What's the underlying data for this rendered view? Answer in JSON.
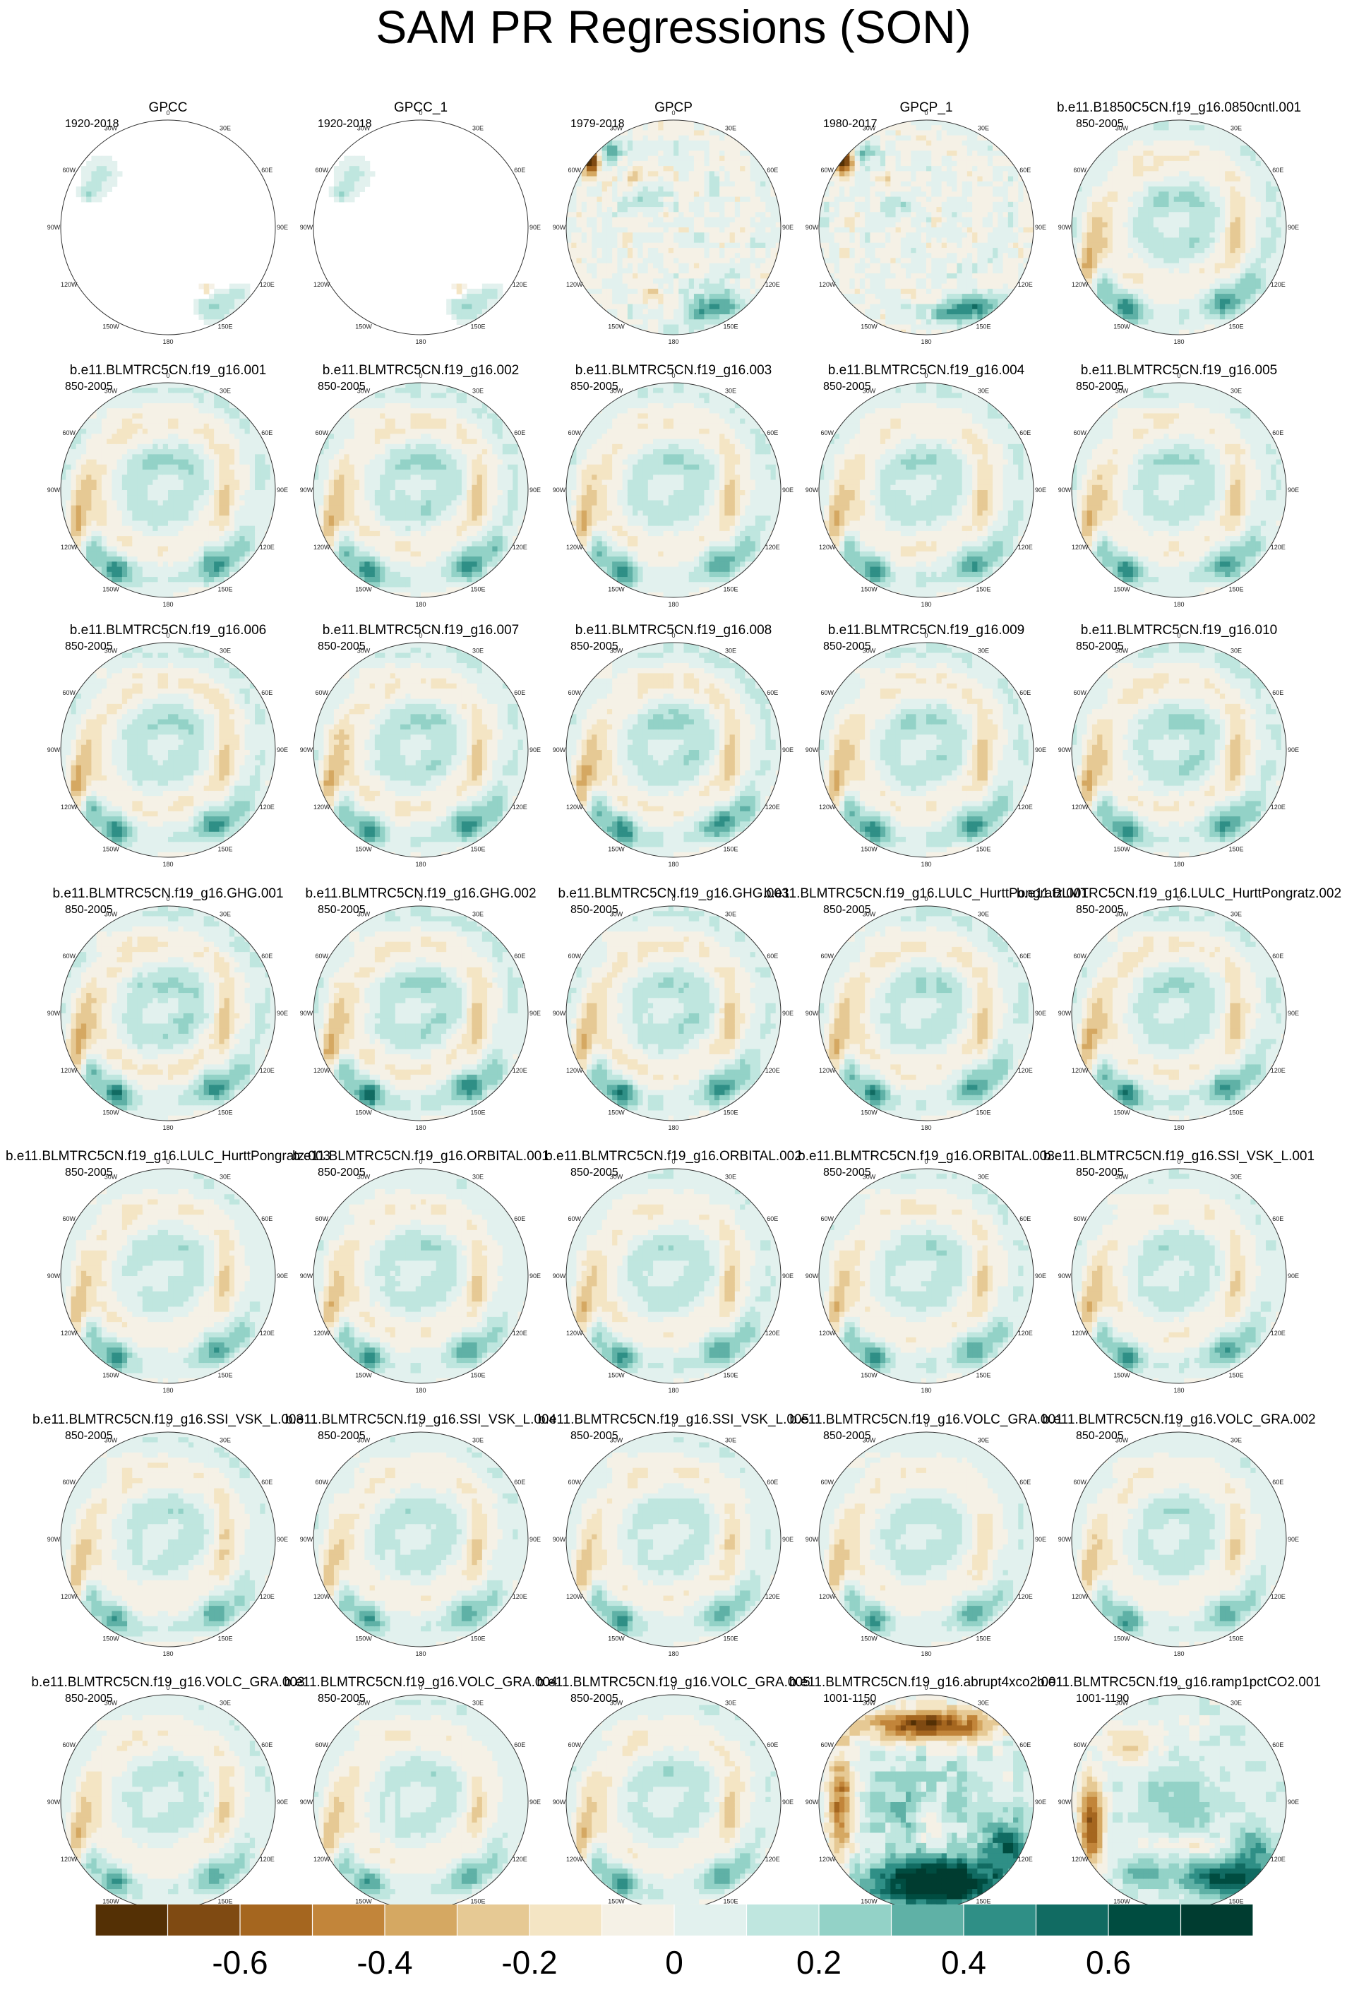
{
  "figure_title": "SAM PR Regressions (SON)",
  "chart_data": {
    "type": "heatmap",
    "title": "SAM PR Regressions (SON)",
    "projection": "south-polar-stereographic",
    "longitude_labels": [
      "0",
      "30E",
      "60E",
      "90E",
      "120E",
      "150E",
      "180",
      "150W",
      "120W",
      "90W",
      "60W",
      "30W"
    ],
    "colorbar": {
      "levels": [
        -0.7,
        -0.6,
        -0.5,
        -0.4,
        -0.3,
        -0.2,
        -0.1,
        0,
        0.1,
        0.2,
        0.3,
        0.4,
        0.5,
        0.6,
        0.7
      ],
      "tick_labels": [
        "-0.6",
        "-0.4",
        "-0.2",
        "0",
        "0.2",
        "0.4",
        "0.6"
      ],
      "tick_values": [
        -0.6,
        -0.4,
        -0.2,
        0,
        0.2,
        0.4,
        0.6
      ],
      "colors": [
        "#543005",
        "#7f4a12",
        "#a5661f",
        "#c2853a",
        "#d5a862",
        "#e6c994",
        "#f4e5c4",
        "#f5f1e6",
        "#e2f1ee",
        "#bfe6df",
        "#93d2c7",
        "#5fb1a6",
        "#2f8f86",
        "#116b62",
        "#004c40",
        "#003c30"
      ]
    },
    "panels": [
      {
        "title": "GPCC",
        "years": "1920-2018",
        "pattern": "obs_sparse",
        "amp": 1.0
      },
      {
        "title": "GPCC_1",
        "years": "1920-2018",
        "pattern": "obs_sparse",
        "amp": 1.0
      },
      {
        "title": "GPCP",
        "years": "1979-2018",
        "pattern": "obs",
        "amp": 1.0
      },
      {
        "title": "GPCP_1",
        "years": "1980-2017",
        "pattern": "obs",
        "amp": 1.0
      },
      {
        "title": "b.e11.B1850C5CN.f19_g16.0850cntl.001",
        "years": "850-2005",
        "pattern": "model",
        "amp": 1.0
      },
      {
        "title": "b.e11.BLMTRC5CN.f19_g16.001",
        "years": "850-2005",
        "pattern": "model",
        "amp": 1.0
      },
      {
        "title": "b.e11.BLMTRC5CN.f19_g16.002",
        "years": "850-2005",
        "pattern": "model",
        "amp": 1.0
      },
      {
        "title": "b.e11.BLMTRC5CN.f19_g16.003",
        "years": "850-2005",
        "pattern": "model",
        "amp": 0.95
      },
      {
        "title": "b.e11.BLMTRC5CN.f19_g16.004",
        "years": "850-2005",
        "pattern": "model",
        "amp": 0.95
      },
      {
        "title": "b.e11.BLMTRC5CN.f19_g16.005",
        "years": "850-2005",
        "pattern": "model",
        "amp": 0.95
      },
      {
        "title": "b.e11.BLMTRC5CN.f19_g16.006",
        "years": "850-2005",
        "pattern": "model",
        "amp": 1.0
      },
      {
        "title": "b.e11.BLMTRC5CN.f19_g16.007",
        "years": "850-2005",
        "pattern": "model",
        "amp": 1.0
      },
      {
        "title": "b.e11.BLMTRC5CN.f19_g16.008",
        "years": "850-2005",
        "pattern": "model",
        "amp": 1.05
      },
      {
        "title": "b.e11.BLMTRC5CN.f19_g16.009",
        "years": "850-2005",
        "pattern": "model",
        "amp": 1.0
      },
      {
        "title": "b.e11.BLMTRC5CN.f19_g16.010",
        "years": "850-2005",
        "pattern": "model",
        "amp": 1.0
      },
      {
        "title": "b.e11.BLMTRC5CN.f19_g16.GHG.001",
        "years": "850-2005",
        "pattern": "model",
        "amp": 1.05
      },
      {
        "title": "b.e11.BLMTRC5CN.f19_g16.GHG.002",
        "years": "850-2005",
        "pattern": "model",
        "amp": 1.05
      },
      {
        "title": "b.e11.BLMTRC5CN.f19_g16.GHG.003",
        "years": "850-2005",
        "pattern": "model",
        "amp": 1.0
      },
      {
        "title": "b.e11.BLMTRC5CN.f19_g16.LULC_HurttPongratz.001",
        "years": "850-2005",
        "pattern": "model",
        "amp": 1.0
      },
      {
        "title": "b.e11.BLMTRC5CN.f19_g16.LULC_HurttPongratz.002",
        "years": "850-2005",
        "pattern": "model",
        "amp": 1.0
      },
      {
        "title": "b.e11.BLMTRC5CN.f19_g16.LULC_HurttPongratz.003",
        "years": "850-2005",
        "pattern": "model",
        "amp": 0.9
      },
      {
        "title": "b.e11.BLMTRC5CN.f19_g16.ORBITAL.001",
        "years": "850-2005",
        "pattern": "model",
        "amp": 0.9
      },
      {
        "title": "b.e11.BLMTRC5CN.f19_g16.ORBITAL.002",
        "years": "850-2005",
        "pattern": "model",
        "amp": 0.9
      },
      {
        "title": "b.e11.BLMTRC5CN.f19_g16.ORBITAL.003",
        "years": "850-2005",
        "pattern": "model",
        "amp": 0.9
      },
      {
        "title": "b.e11.BLMTRC5CN.f19_g16.SSI_VSK_L.001",
        "years": "850-2005",
        "pattern": "model",
        "amp": 0.9
      },
      {
        "title": "b.e11.BLMTRC5CN.f19_g16.SSI_VSK_L.003",
        "years": "850-2005",
        "pattern": "model",
        "amp": 0.85
      },
      {
        "title": "b.e11.BLMTRC5CN.f19_g16.SSI_VSK_L.004",
        "years": "850-2005",
        "pattern": "model",
        "amp": 0.85
      },
      {
        "title": "b.e11.BLMTRC5CN.f19_g16.SSI_VSK_L.005",
        "years": "850-2005",
        "pattern": "model",
        "amp": 0.85
      },
      {
        "title": "b.e11.BLMTRC5CN.f19_g16.VOLC_GRA.001",
        "years": "850-2005",
        "pattern": "model",
        "amp": 0.85
      },
      {
        "title": "b.e11.BLMTRC5CN.f19_g16.VOLC_GRA.002",
        "years": "850-2005",
        "pattern": "model",
        "amp": 0.85
      },
      {
        "title": "b.e11.BLMTRC5CN.f19_g16.VOLC_GRA.003",
        "years": "850-2005",
        "pattern": "model",
        "amp": 0.85
      },
      {
        "title": "b.e11.BLMTRC5CN.f19_g16.VOLC_GRA.004",
        "years": "850-2005",
        "pattern": "model",
        "amp": 0.85
      },
      {
        "title": "b.e11.BLMTRC5CN.f19_g16.VOLC_GRA.005",
        "years": "850-2005",
        "pattern": "model",
        "amp": 0.9
      },
      {
        "title": "b.e11.BLMTRC5CN.f19_g16.abrupt4xco2.001",
        "years": "1001-1150",
        "pattern": "abrupt",
        "amp": 1.0
      },
      {
        "title": "b.e11.BLMTRC5CN.f19_g16.ramp1pctCO2.001",
        "years": "1001-1190",
        "pattern": "ramp",
        "amp": 1.0
      }
    ]
  }
}
